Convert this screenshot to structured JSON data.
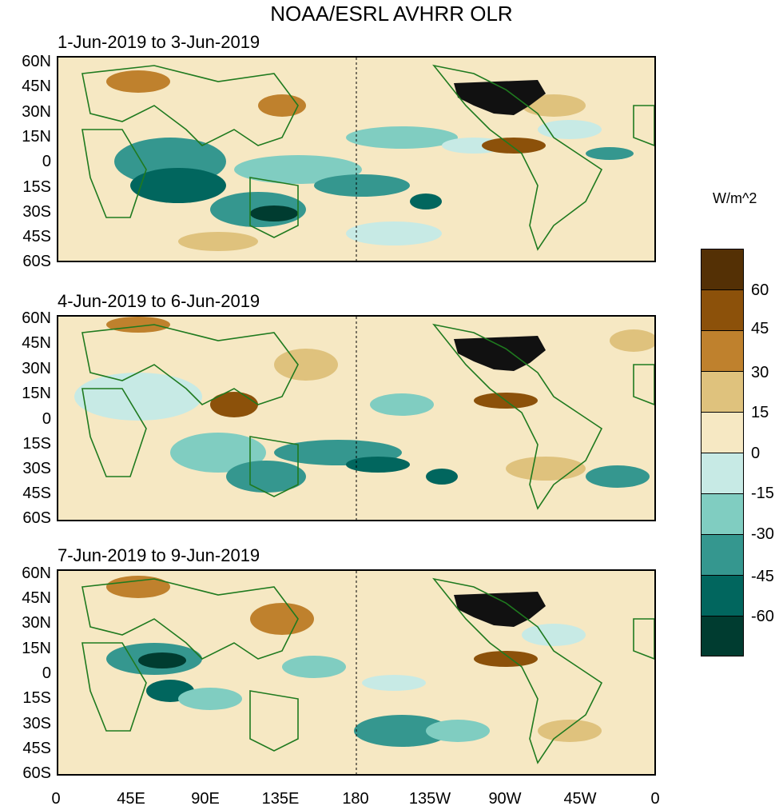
{
  "title": "NOAA/ESRL AVHRR OLR",
  "panels": [
    {
      "label": "1-Jun-2019 to 3-Jun-2019"
    },
    {
      "label": "4-Jun-2019 to 6-Jun-2019"
    },
    {
      "label": "7-Jun-2019 to 9-Jun-2019"
    }
  ],
  "lat_labels": [
    "60N",
    "45N",
    "30N",
    "15N",
    "0",
    "15S",
    "30S",
    "45S",
    "60S"
  ],
  "lon_labels": [
    "0",
    "45E",
    "90E",
    "135E",
    "180",
    "135W",
    "90W",
    "45W",
    "0"
  ],
  "colorbar": {
    "unit": "W/m^2",
    "tick_labels": [
      "60",
      "45",
      "30",
      "15",
      "0",
      "-15",
      "-30",
      "-45",
      "-60"
    ],
    "colors": [
      "#543005",
      "#8c510a",
      "#bf812d",
      "#dfc27d",
      "#f6e8c3",
      "#c7eae5",
      "#80cdc1",
      "#35978f",
      "#01665e",
      "#003c30"
    ]
  }
}
